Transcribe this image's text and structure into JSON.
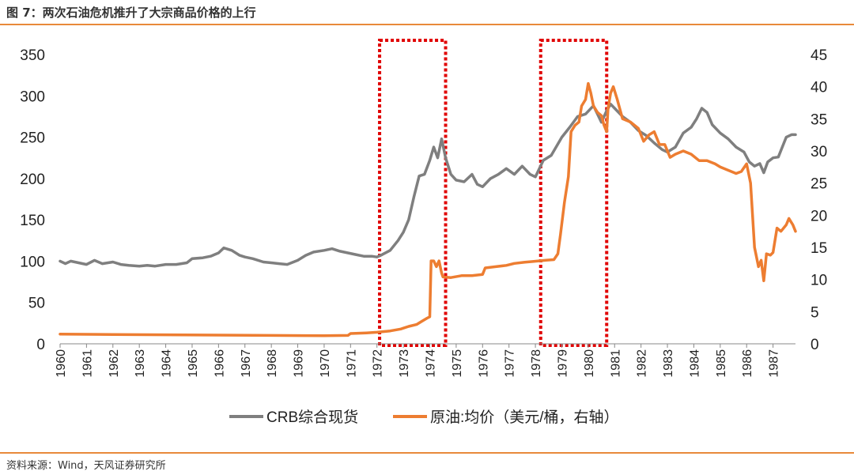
{
  "figure": {
    "title": "图 7：两次石油危机推升了大宗商品价格的上行",
    "source": "资料来源：Wind，天风证券研究所"
  },
  "colors": {
    "crb": "#7F7F7F",
    "oil": "#ED7D31",
    "highlight_box": "#E00000",
    "rule": "#E8893A"
  },
  "chart_data": {
    "type": "line",
    "x_ticks": [
      "1960",
      "1961",
      "1962",
      "1963",
      "1964",
      "1965",
      "1966",
      "1967",
      "1968",
      "1969",
      "1970",
      "1971",
      "1972",
      "1973",
      "1974",
      "1975",
      "1976",
      "1977",
      "1978",
      "1979",
      "1980",
      "1981",
      "1982",
      "1983",
      "1984",
      "1985",
      "1986",
      "1987"
    ],
    "x_range": [
      1960,
      1987.85
    ],
    "y_left": {
      "range": [
        0,
        350
      ],
      "ticks": [
        "0",
        "50",
        "100",
        "150",
        "200",
        "250",
        "300",
        "350"
      ]
    },
    "y_right": {
      "range": [
        0,
        45
      ],
      "ticks": [
        "0",
        "5",
        "10",
        "15",
        "20",
        "25",
        "30",
        "35",
        "40",
        "45"
      ]
    },
    "grid": false,
    "legend_position": "bottom",
    "highlight_periods": [
      {
        "from": 1972.1,
        "to": 1974.6
      },
      {
        "from": 1978.2,
        "to": 1980.7
      }
    ],
    "series": [
      {
        "name": "CRB综合现货",
        "axis": "left",
        "points": [
          [
            1960.0,
            100
          ],
          [
            1960.2,
            97
          ],
          [
            1960.4,
            100
          ],
          [
            1960.7,
            98
          ],
          [
            1961.0,
            96
          ],
          [
            1961.3,
            101
          ],
          [
            1961.6,
            97
          ],
          [
            1962.0,
            99
          ],
          [
            1962.3,
            96
          ],
          [
            1962.6,
            95
          ],
          [
            1963.0,
            94
          ],
          [
            1963.3,
            95
          ],
          [
            1963.6,
            94
          ],
          [
            1964.0,
            96
          ],
          [
            1964.4,
            96
          ],
          [
            1964.8,
            98
          ],
          [
            1965.0,
            103
          ],
          [
            1965.4,
            104
          ],
          [
            1965.7,
            106
          ],
          [
            1966.0,
            110
          ],
          [
            1966.2,
            116
          ],
          [
            1966.5,
            113
          ],
          [
            1966.8,
            107
          ],
          [
            1967.0,
            105
          ],
          [
            1967.3,
            103
          ],
          [
            1967.7,
            99
          ],
          [
            1968.0,
            98
          ],
          [
            1968.3,
            97
          ],
          [
            1968.6,
            96
          ],
          [
            1969.0,
            101
          ],
          [
            1969.3,
            107
          ],
          [
            1969.6,
            111
          ],
          [
            1970.0,
            113
          ],
          [
            1970.3,
            115
          ],
          [
            1970.6,
            112
          ],
          [
            1970.9,
            110
          ],
          [
            1971.2,
            108
          ],
          [
            1971.5,
            106
          ],
          [
            1971.8,
            106
          ],
          [
            1972.0,
            105
          ],
          [
            1972.2,
            108
          ],
          [
            1972.5,
            113
          ],
          [
            1972.8,
            125
          ],
          [
            1973.0,
            135
          ],
          [
            1973.2,
            150
          ],
          [
            1973.4,
            178
          ],
          [
            1973.6,
            203
          ],
          [
            1973.8,
            205
          ],
          [
            1974.0,
            222
          ],
          [
            1974.15,
            238
          ],
          [
            1974.3,
            225
          ],
          [
            1974.45,
            248
          ],
          [
            1974.6,
            225
          ],
          [
            1974.8,
            205
          ],
          [
            1975.0,
            198
          ],
          [
            1975.3,
            196
          ],
          [
            1975.6,
            205
          ],
          [
            1975.8,
            193
          ],
          [
            1976.0,
            190
          ],
          [
            1976.3,
            200
          ],
          [
            1976.6,
            205
          ],
          [
            1976.9,
            212
          ],
          [
            1977.2,
            205
          ],
          [
            1977.5,
            215
          ],
          [
            1977.8,
            205
          ],
          [
            1978.0,
            202
          ],
          [
            1978.3,
            222
          ],
          [
            1978.6,
            228
          ],
          [
            1979.0,
            250
          ],
          [
            1979.3,
            262
          ],
          [
            1979.6,
            275
          ],
          [
            1979.9,
            278
          ],
          [
            1980.2,
            288
          ],
          [
            1980.5,
            268
          ],
          [
            1980.7,
            282
          ],
          [
            1980.85,
            290
          ],
          [
            1981.0,
            285
          ],
          [
            1981.3,
            275
          ],
          [
            1981.6,
            268
          ],
          [
            1981.9,
            258
          ],
          [
            1982.2,
            252
          ],
          [
            1982.5,
            243
          ],
          [
            1982.8,
            235
          ],
          [
            1983.0,
            232
          ],
          [
            1983.3,
            238
          ],
          [
            1983.6,
            255
          ],
          [
            1983.9,
            262
          ],
          [
            1984.1,
            272
          ],
          [
            1984.3,
            285
          ],
          [
            1984.5,
            280
          ],
          [
            1984.7,
            265
          ],
          [
            1985.0,
            255
          ],
          [
            1985.3,
            248
          ],
          [
            1985.6,
            238
          ],
          [
            1985.9,
            232
          ],
          [
            1986.1,
            220
          ],
          [
            1986.3,
            215
          ],
          [
            1986.5,
            218
          ],
          [
            1986.65,
            207
          ],
          [
            1986.8,
            220
          ],
          [
            1987.0,
            225
          ],
          [
            1987.2,
            226
          ],
          [
            1987.35,
            238
          ],
          [
            1987.5,
            250
          ],
          [
            1987.7,
            253
          ],
          [
            1987.85,
            253
          ]
        ]
      },
      {
        "name": "原油:均价（美元/桶，右轴）",
        "axis": "right",
        "points": [
          [
            1960.0,
            1.5
          ],
          [
            1962.0,
            1.45
          ],
          [
            1964.0,
            1.4
          ],
          [
            1966.0,
            1.35
          ],
          [
            1968.0,
            1.3
          ],
          [
            1970.0,
            1.25
          ],
          [
            1970.9,
            1.3
          ],
          [
            1971.0,
            1.6
          ],
          [
            1971.6,
            1.7
          ],
          [
            1972.0,
            1.8
          ],
          [
            1972.5,
            2.0
          ],
          [
            1972.9,
            2.3
          ],
          [
            1973.2,
            2.7
          ],
          [
            1973.5,
            3.0
          ],
          [
            1973.7,
            3.5
          ],
          [
            1973.9,
            4.0
          ],
          [
            1974.0,
            4.2
          ],
          [
            1974.05,
            12.9
          ],
          [
            1974.15,
            12.9
          ],
          [
            1974.25,
            12.0
          ],
          [
            1974.35,
            12.9
          ],
          [
            1974.45,
            11.0
          ],
          [
            1974.5,
            10.4
          ],
          [
            1974.8,
            10.3
          ],
          [
            1975.2,
            10.6
          ],
          [
            1975.6,
            10.6
          ],
          [
            1976.0,
            10.8
          ],
          [
            1976.1,
            11.8
          ],
          [
            1976.5,
            12.0
          ],
          [
            1976.9,
            12.2
          ],
          [
            1977.2,
            12.5
          ],
          [
            1977.6,
            12.7
          ],
          [
            1977.9,
            12.8
          ],
          [
            1978.4,
            13.0
          ],
          [
            1978.7,
            13.1
          ],
          [
            1978.85,
            14.0
          ],
          [
            1978.95,
            17.0
          ],
          [
            1979.1,
            22.0
          ],
          [
            1979.25,
            26.0
          ],
          [
            1979.35,
            33.0
          ],
          [
            1979.5,
            34.0
          ],
          [
            1979.65,
            34.5
          ],
          [
            1979.75,
            37.0
          ],
          [
            1979.9,
            38.0
          ],
          [
            1980.0,
            40.5
          ],
          [
            1980.1,
            39.0
          ],
          [
            1980.2,
            37.0
          ],
          [
            1980.35,
            36.0
          ],
          [
            1980.5,
            35.5
          ],
          [
            1980.6,
            34.0
          ],
          [
            1980.7,
            33.0
          ],
          [
            1980.75,
            36.5
          ],
          [
            1980.85,
            39.0
          ],
          [
            1980.95,
            40.0
          ],
          [
            1981.1,
            38.0
          ],
          [
            1981.3,
            35.0
          ],
          [
            1981.6,
            34.5
          ],
          [
            1981.9,
            33.5
          ],
          [
            1982.1,
            31.5
          ],
          [
            1982.3,
            32.5
          ],
          [
            1982.5,
            33.0
          ],
          [
            1982.7,
            31.0
          ],
          [
            1982.9,
            31.0
          ],
          [
            1983.1,
            29.0
          ],
          [
            1983.3,
            29.5
          ],
          [
            1983.6,
            30.0
          ],
          [
            1983.9,
            29.5
          ],
          [
            1984.2,
            28.5
          ],
          [
            1984.5,
            28.5
          ],
          [
            1984.8,
            28.0
          ],
          [
            1985.0,
            27.5
          ],
          [
            1985.3,
            27.0
          ],
          [
            1985.6,
            26.5
          ],
          [
            1985.8,
            26.8
          ],
          [
            1986.0,
            28.0
          ],
          [
            1986.15,
            25.0
          ],
          [
            1986.3,
            15.0
          ],
          [
            1986.45,
            12.0
          ],
          [
            1986.55,
            13.0
          ],
          [
            1986.65,
            9.8
          ],
          [
            1986.75,
            14.0
          ],
          [
            1986.9,
            13.8
          ],
          [
            1987.0,
            14.2
          ],
          [
            1987.15,
            18.0
          ],
          [
            1987.3,
            17.5
          ],
          [
            1987.5,
            18.5
          ],
          [
            1987.6,
            19.5
          ],
          [
            1987.75,
            18.5
          ],
          [
            1987.85,
            17.5
          ]
        ]
      }
    ]
  }
}
